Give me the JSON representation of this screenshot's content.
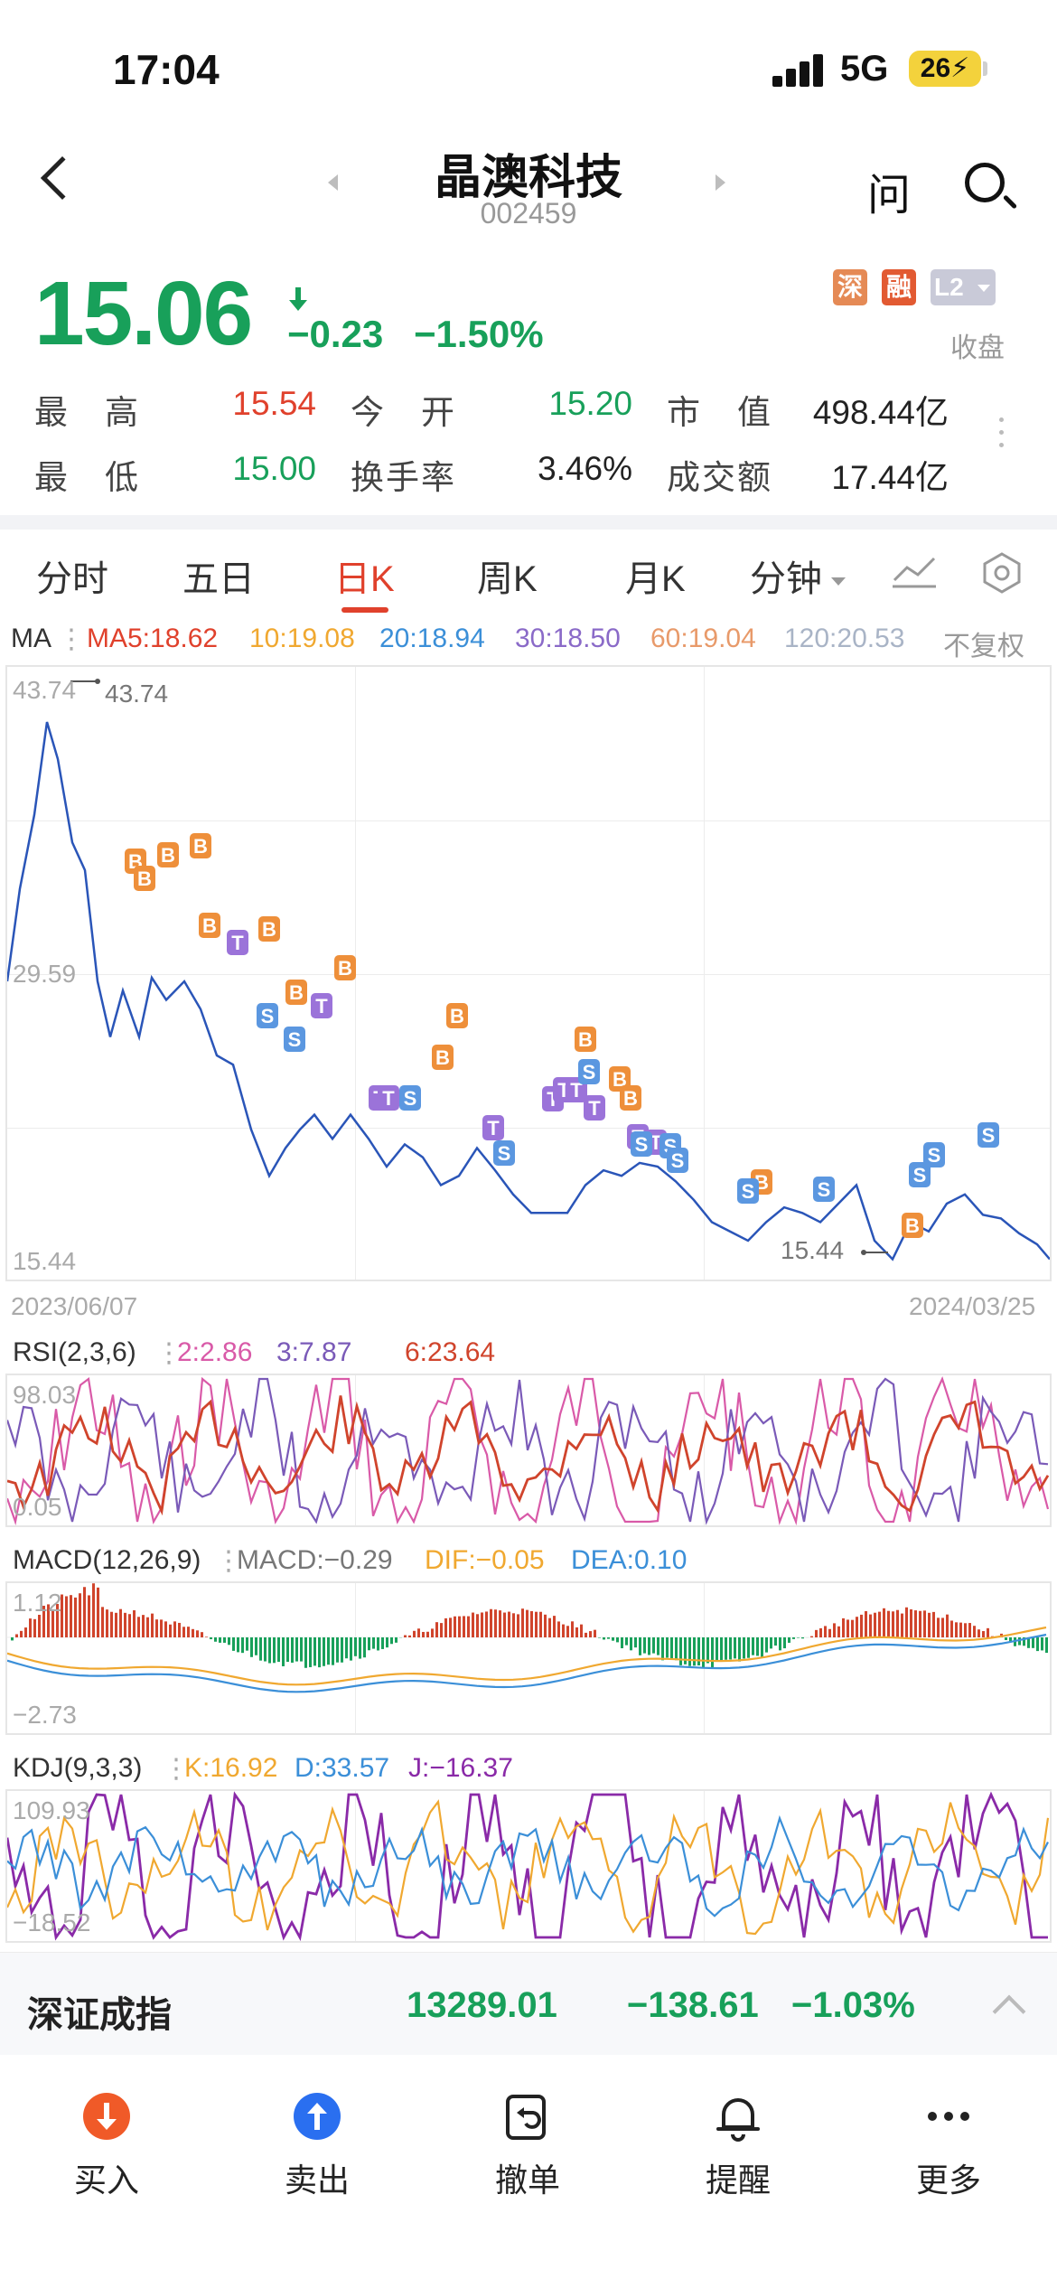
{
  "status_bar": {
    "time": "17:04",
    "network": "5G",
    "battery": "26"
  },
  "header": {
    "stock_name": "晶澳科技",
    "stock_code": "002459",
    "ask_label": "问"
  },
  "quote": {
    "price": "15.06",
    "change": "−0.23",
    "change_pct": "−1.50%",
    "badges": [
      "深",
      "融",
      "L2"
    ],
    "market_status": "收盘",
    "stats": [
      {
        "label": "最　高",
        "value": "15.54",
        "color": "#e0412c"
      },
      {
        "label": "今　开",
        "value": "15.20",
        "color": "#18a05a"
      },
      {
        "label": "市　值",
        "value": "498.44亿",
        "color": "#222222"
      },
      {
        "label": "最　低",
        "value": "15.00",
        "color": "#18a05a"
      },
      {
        "label": "换手率",
        "value": "3.46%",
        "color": "#222222"
      },
      {
        "label": "成交额",
        "value": "17.44亿",
        "color": "#222222"
      }
    ]
  },
  "period_tabs": {
    "items": [
      "分时",
      "五日",
      "日K",
      "周K",
      "月K",
      "分钟"
    ],
    "active": "日K"
  },
  "ma_legend": {
    "title": "MA",
    "items": [
      {
        "label": "MA5:18.62",
        "color": "#e0412c"
      },
      {
        "label": "10:19.08",
        "color": "#f0a830"
      },
      {
        "label": "20:18.94",
        "color": "#3b8fd8"
      },
      {
        "label": "30:18.50",
        "color": "#8a6ac8"
      },
      {
        "label": "60:19.04",
        "color": "#e89a6a"
      },
      {
        "label": "120:20.53",
        "color": "#a9b4c6"
      }
    ],
    "adjust": "不复权"
  },
  "kline": {
    "y_top": "43.74",
    "y_mid": "29.59",
    "y_bottom": "15.44",
    "high_marker": "43.74",
    "low_marker": "15.44",
    "date_start": "2023/06/07",
    "date_end": "2024/03/25"
  },
  "rsi": {
    "title": "RSI(2,3,6)",
    "items": [
      {
        "label": "2:2.86",
        "color": "#d95aa8"
      },
      {
        "label": "3:7.87",
        "color": "#7a5ab8"
      },
      {
        "label": "6:23.64",
        "color": "#d0442c"
      }
    ],
    "y_top": "98.03",
    "y_bottom": "0.05"
  },
  "macd": {
    "title": "MACD(12,26,9)",
    "items": [
      {
        "label": "MACD:−0.29",
        "color": "#777777"
      },
      {
        "label": "DIF:−0.05",
        "color": "#f0a830"
      },
      {
        "label": "DEA:0.10",
        "color": "#3b8fd8"
      }
    ],
    "y_top": "1.12",
    "y_bottom": "−2.73"
  },
  "kdj": {
    "title": "KDJ(9,3,3)",
    "items": [
      {
        "label": "K:16.92",
        "color": "#f0a830"
      },
      {
        "label": "D:33.57",
        "color": "#3b8fd8"
      },
      {
        "label": "J:−16.37",
        "color": "#8a2aa8"
      }
    ],
    "y_top": "109.93",
    "y_bottom": "−18.52"
  },
  "index_bar": {
    "name": "深证成指",
    "value": "13289.01",
    "change": "−138.61",
    "change_pct": "−1.03%"
  },
  "toolbar": [
    {
      "label": "买入",
      "icon": "buy-arrow-down-icon",
      "color": "#f05a28"
    },
    {
      "label": "卖出",
      "icon": "sell-arrow-up-icon",
      "color": "#2a6ff0"
    },
    {
      "label": "撤单",
      "icon": "cancel-order-icon",
      "color": "#222222"
    },
    {
      "label": "提醒",
      "icon": "bell-icon",
      "color": "#222222"
    },
    {
      "label": "更多",
      "icon": "more-dots-icon",
      "color": "#222222"
    }
  ]
}
